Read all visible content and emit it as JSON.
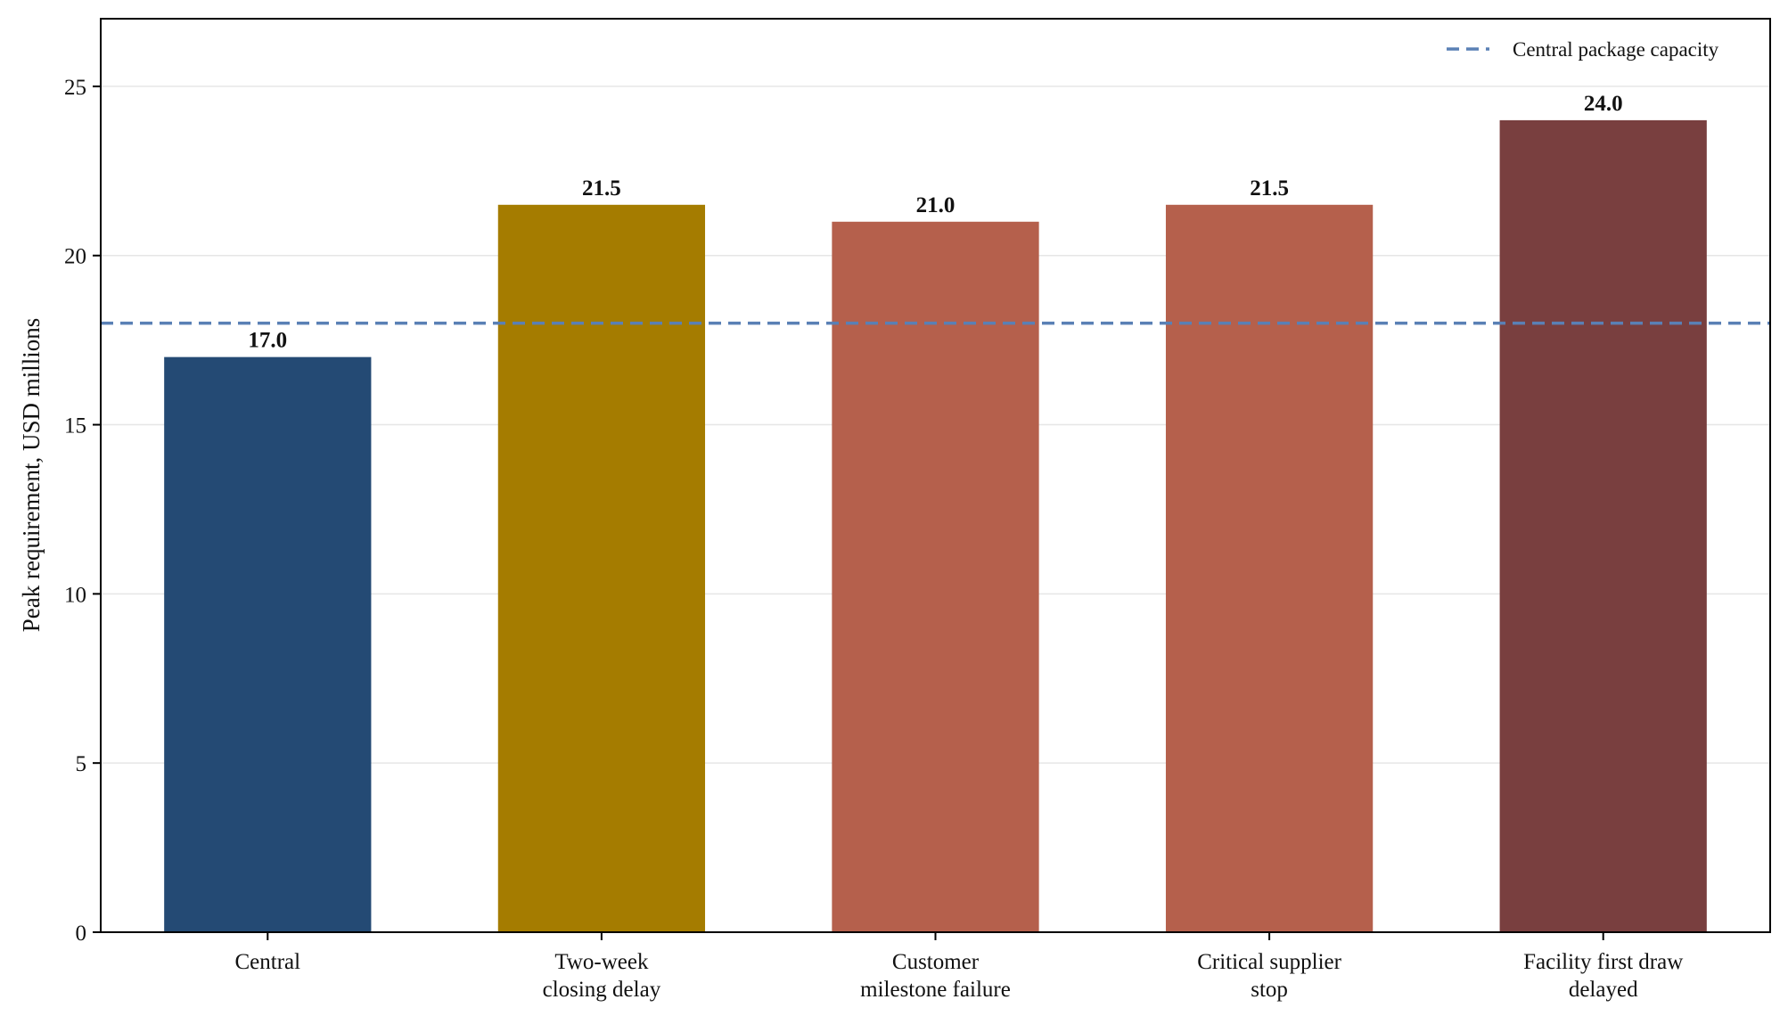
{
  "chart_data": {
    "type": "bar",
    "categories": [
      [
        "Central"
      ],
      [
        "Two-week",
        "closing delay"
      ],
      [
        "Customer",
        "milestone failure"
      ],
      [
        "Critical supplier",
        "stop"
      ],
      [
        "Facility first draw",
        "delayed"
      ]
    ],
    "values": [
      17.0,
      21.5,
      21.0,
      21.5,
      24.0
    ],
    "value_labels": [
      "17.0",
      "21.5",
      "21.0",
      "21.5",
      "24.0"
    ],
    "bar_colors": [
      "#244a74",
      "#a57c00",
      "#b5604c",
      "#b5604c",
      "#793f3f"
    ],
    "title": "",
    "xlabel": "",
    "ylabel": "Peak requirement, USD millions",
    "ylim": [
      0,
      27
    ],
    "yticks": [
      0,
      5,
      10,
      15,
      20,
      25
    ],
    "grid": "horizontal",
    "reference_line": {
      "value": 18.0,
      "label": "Central package capacity",
      "color": "#5a80b5",
      "style": "dashed"
    },
    "legend": {
      "placement": "top-right",
      "entries": [
        "Central package capacity"
      ]
    }
  }
}
